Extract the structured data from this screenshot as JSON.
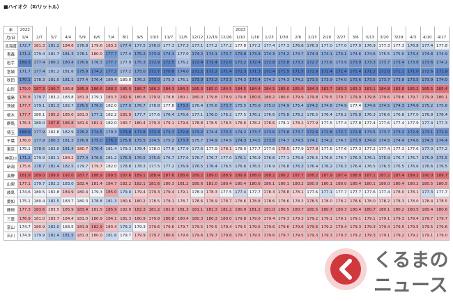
{
  "title": "■ハイオク（¥/リットル）",
  "table": {
    "year_label": "年",
    "date_label": "月/日",
    "years": [
      {
        "label": "2022",
        "start": 0
      },
      {
        "label": "2023",
        "start": 15
      }
    ],
    "columns": [
      "1/4",
      "2/7",
      "3/7",
      "4/4",
      "5/9",
      "6/6",
      "7/4",
      "8/1",
      "9/5",
      "10/3",
      "11/7",
      "12/5",
      "12/12",
      "12/19",
      "12/26",
      "1/10",
      "1/16",
      "1/23",
      "1/30",
      "2/6",
      "2/13",
      "2/20",
      "2/27",
      "3/6",
      "3/13",
      "3/20",
      "3/29",
      "4/3",
      "4/10",
      "4/17"
    ],
    "rows": [
      {
        "name": "北海道",
        "values": [
          "172.7",
          "181.3",
          "181.2",
          "184.6",
          "178.8",
          "179.6",
          "183.3",
          "177.4",
          "177.5",
          "176.0",
          "177.3",
          "177.3",
          "177.1",
          "177.2",
          "177.2",
          "177.8",
          "177.2",
          "177.4",
          "177.3",
          "176.6",
          "176.3",
          "177.0",
          "177.0",
          "177.0",
          "176.9",
          "177.3",
          "177.3",
          "176.8",
          "177.4",
          "177.8"
        ]
      },
      {
        "name": "青森",
        "values": [
          "171.2",
          "179.4",
          "181.7",
          "181.3",
          "178.1",
          "180.0",
          "177.7",
          "177.4",
          "175.2",
          "173.9",
          "174.3",
          "177.0",
          "174.2",
          "174.1",
          "173.7",
          "173.8",
          "173.9",
          "174.3",
          "174.2",
          "174.7",
          "174.0",
          "174.1",
          "174.1",
          "174.6",
          "174.6",
          "175.5",
          "175.0",
          "174.4",
          "174.8",
          "174.9"
        ]
      },
      {
        "name": "岩手",
        "values": [
          "169.3",
          "177.4",
          "180.1",
          "180.4",
          "176.6",
          "176.3",
          "177.7",
          "177.9",
          "175.3",
          "172.9",
          "172.5",
          "176.2",
          "172.4",
          "172.4",
          "172.0",
          "173.2",
          "172.4",
          "172.8",
          "172.8",
          "173.3",
          "172.7",
          "173.6",
          "173.9",
          "173.0",
          "173.3",
          "173.7",
          "173.4",
          "173.8",
          "173.6",
          "174.2"
        ]
      },
      {
        "name": "宮城",
        "values": [
          "171.7",
          "177.4",
          "181.2",
          "181.6",
          "175.9",
          "174.2",
          "177.2",
          "177.2",
          "175.0",
          "171.7",
          "170.8",
          "174.0",
          "171.2",
          "171.2",
          "171.4",
          "171.3",
          "171.3",
          "171.4",
          "171.5",
          "171.5",
          "171.6",
          "171.4",
          "171.4",
          "171.4",
          "171.2",
          "171.0",
          "171.1",
          "171.0",
          "172.6",
          "171.9"
        ]
      },
      {
        "name": "秋田",
        "values": [
          "170.1",
          "178.3",
          "181.0",
          "181.1",
          "177.4",
          "176.4",
          "180.4",
          "180.0",
          "176.2",
          "173.0",
          "175.3",
          "176.1",
          "173.0",
          "173.2",
          "173.3",
          "174.3",
          "173.4",
          "174.2",
          "174.3",
          "174.2",
          "173.5",
          "173.9",
          "174.0",
          "173.6",
          "173.5",
          "173.7",
          "173.8",
          "173.5",
          "173.9",
          "174.0"
        ]
      },
      {
        "name": "山形",
        "values": [
          "179.0",
          "187.3",
          "190.7",
          "186.8",
          "185.9",
          "186.6",
          "188.3",
          "185.0",
          "186.7",
          "186.2",
          "184.3",
          "184.3",
          "185.0",
          "185.0",
          "184.5",
          "184.5",
          "184.4",
          "184.5",
          "185.0",
          "185.0",
          "184.0",
          "183.7",
          "183.3",
          "183.3",
          "183.1",
          "184.8",
          "183.8",
          "185.2",
          "185.5",
          "185.4"
        ]
      },
      {
        "name": "福島",
        "values": [
          "176.8",
          "179.7",
          "183.2",
          "183.8",
          "181.0",
          "179.1",
          "183.3",
          "182.6",
          "180.8",
          "179.9",
          "178.8",
          "180.1",
          "180.0",
          "179.8",
          "179.9",
          "179.8",
          "180.6",
          "180.2",
          "180.0",
          "179.9",
          "179.8",
          "179.5",
          "179.7",
          "179.9",
          "179.8",
          "179.6",
          "179.6",
          "179.7",
          "179.9",
          "180.1"
        ]
      },
      {
        "name": "茨城",
        "values": [
          "177.7",
          "179.1",
          "181.3",
          "182.7",
          "176.5",
          "176.0",
          "182.0",
          "177.0",
          "176.7",
          "176.8",
          "177.8",
          "173.5",
          "176.4",
          "175.6",
          "173.7",
          "175.5",
          "175.0",
          "175.0",
          "174.9",
          "175.4",
          "174.2",
          "174.8",
          "174.9",
          "177.4",
          "174.6",
          "174.5",
          "174.3",
          "174.6",
          "175.2",
          "175.6"
        ]
      },
      {
        "name": "栃木",
        "values": [
          "177.7",
          "180.1",
          "185.2",
          "185.0",
          "181.0",
          "177.1",
          "182.2",
          "181.9",
          "177.7",
          "177.6",
          "176.4",
          "176.6",
          "177.1",
          "176.0",
          "176.2",
          "177.5",
          "176.1",
          "176.6",
          "175.8",
          "176.2",
          "176.5",
          "176.4",
          "176.2",
          "175.8",
          "176.3",
          "176.6",
          "176.8",
          "177.0",
          "176.8",
          "176.4"
        ]
      },
      {
        "name": "群馬",
        "values": [
          "176.3",
          "180.0",
          "187.8",
          "186.8",
          "181.6",
          "181.1",
          "182.0",
          "180.7",
          "180.4",
          "179.3",
          "179.1",
          "179.6",
          "178.8",
          "178.5",
          "178.5",
          "178.6",
          "178.2",
          "178.6",
          "178.1",
          "178.2",
          "177.9",
          "177.5",
          "177.4",
          "177.8",
          "177.4",
          "177.6",
          "177.4",
          "177.9",
          "177.4",
          "177.3"
        ]
      },
      {
        "name": "埼玉",
        "values": [
          "168.6",
          "177.9",
          "182.8",
          "182.9",
          "176.2",
          "174.5",
          "179.3",
          "173.8",
          "173.8",
          "172.3",
          "173.3",
          "172.8",
          "173.2",
          "174.4",
          "173.3",
          "174.2",
          "173.7",
          "173.6",
          "173.8",
          "173.7",
          "172.6",
          "172.8",
          "172.7",
          "172.8",
          "173.5",
          "173.7",
          "173.2",
          "172.9",
          "173.1",
          "172.9"
        ]
      },
      {
        "name": "千葉",
        "values": [
          "176.0",
          "177.9",
          "180.3",
          "181.3",
          "176.9",
          "175.0",
          "176.3",
          "175.8",
          "175.5",
          "174.5",
          "175.2",
          "173.9",
          "175.7",
          "174.9",
          "174.9",
          "174.3",
          "174.5",
          "173.8",
          "174.7",
          "174.5",
          "174.1",
          "174.2",
          "174.7",
          "173.9",
          "174.0",
          "174.5",
          "174.4",
          "174.6",
          "174.3",
          "174.4"
        ]
      },
      {
        "name": "東京",
        "values": [
          "175.1",
          "178.6",
          "182.0",
          "181.4",
          "180.7",
          "176.4",
          "181.4",
          "179.3",
          "178.4",
          "178.0",
          "177.6",
          "177.9",
          "177.6",
          "177.9",
          "178.1",
          "178.0",
          "177.7",
          "177.6",
          "178.5",
          "177.9",
          "177.8",
          "177.6",
          "177.6",
          "177.3",
          "177.2",
          "177.4",
          "177.3",
          "177.6",
          "177.0",
          "177.2"
        ]
      },
      {
        "name": "神奈川",
        "values": [
          "171.2",
          "179.9",
          "182.1",
          "184.2",
          "177.4",
          "176.6",
          "181.2",
          "176.9",
          "176.5",
          "175.6",
          "176.7",
          "177.0",
          "176.7",
          "176.7",
          "177.0",
          "176.1",
          "176.9",
          "176.6",
          "177.1",
          "176.8",
          "176.5",
          "176.6",
          "176.7",
          "176.3",
          "176.1",
          "175.9",
          "176.7",
          "176.7",
          "175.9",
          "175.5"
        ]
      },
      {
        "name": "新潟",
        "values": [
          "175.6",
          "178.7",
          "181.4",
          "182.5",
          "179.7",
          "179.7",
          "182.0",
          "178.8",
          "178.3",
          "177.5",
          "177.2",
          "176.9",
          "176.5",
          "176.4",
          "176.5",
          "176.6",
          "176.5",
          "176.9",
          "176.8",
          "176.3",
          "176.4",
          "176.2",
          "176.3",
          "176.4",
          "176.5",
          "176.3",
          "176.5",
          "176.6",
          "176.6",
          "176.5"
        ]
      },
      {
        "name": "長野",
        "values": [
          "181.8",
          "189.0",
          "189.9",
          "192.0",
          "187.7",
          "188.9",
          "189.5",
          "187.6",
          "189.1",
          "188.4",
          "187.6",
          "188.6",
          "189.2",
          "189.0",
          "188.9",
          "189.0",
          "188.0",
          "188.2",
          "188.2",
          "187.7",
          "188.2",
          "187.9",
          "187.4",
          "188.0",
          "187.1",
          "187.2",
          "187.4",
          "189.2",
          "190.0",
          "189.7"
        ]
      },
      {
        "name": "山梨",
        "values": [
          "177.1",
          "179.7",
          "182.1",
          "183.0",
          "182.4",
          "181.4",
          "184.7",
          "182.2",
          "182.1",
          "181.6",
          "180.3",
          "181.2",
          "180.6",
          "181.0",
          "180.4",
          "180.4",
          "180.6",
          "180.1",
          "180.1",
          "180.2",
          "180.0",
          "180.1",
          "180.0",
          "180.4",
          "180.1",
          "180.0",
          "180.4",
          "180.2",
          "180.5",
          "180.5"
        ]
      },
      {
        "name": "岐阜",
        "values": [
          "174.6",
          "180.5",
          "182.8",
          "184.9",
          "180.4",
          "179.3",
          "185.0",
          "179.0",
          "179.4",
          "179.3",
          "179.4",
          "179.1",
          "178.0",
          "178.3",
          "177.5",
          "177.4",
          "177.7",
          "178.3",
          "178.8",
          "178.1",
          "177.6",
          "177.1",
          "177.7",
          "177.7",
          "177.6",
          "177.4",
          "178.0",
          "178.1",
          "177.3",
          "177.7"
        ]
      },
      {
        "name": "愛知",
        "values": [
          "175.1",
          "180.4",
          "182.5",
          "183.7",
          "180.3",
          "178.8",
          "181.3",
          "180.6",
          "180.2",
          "178.5",
          "179.1",
          "178.7",
          "178.6",
          "178.9",
          "178.7",
          "178.6",
          "178.8",
          "178.6",
          "178.6",
          "178.3",
          "178.5",
          "178.0",
          "178.2",
          "178.6",
          "178.0",
          "178.2",
          "178.3",
          "178.0",
          "178.4",
          "178.5"
        ]
      },
      {
        "name": "静岡",
        "values": [
          "177.3",
          "183.6",
          "183.5",
          "185.9",
          "183.4",
          "181.5",
          "185.9",
          "182.0",
          "182.3",
          "181.2",
          "181.0",
          "181.3",
          "181.1",
          "181.3",
          "181.2",
          "180.9",
          "181.2",
          "181.0",
          "180.5",
          "180.7",
          "180.5",
          "180.7",
          "180.3",
          "180.4",
          "180.7",
          "180.1",
          "180.2",
          "180.5",
          "180.4",
          "180.6"
        ]
      },
      {
        "name": "三重",
        "values": [
          "176.9",
          "181.0",
          "183.7",
          "184.4",
          "181.0",
          "180.9",
          "184.1",
          "181.3",
          "180.9",
          "179.8",
          "180.8",
          "180.4",
          "180.3",
          "180.3",
          "180.0",
          "179.8",
          "179.6",
          "179.4",
          "179.3",
          "179.3",
          "179.2",
          "179.1",
          "179.1",
          "179.1",
          "179.1",
          "179.1",
          "179.3",
          "179.4",
          "179.7",
          "179.7"
        ]
      },
      {
        "name": "富山",
        "values": [
          "174.7",
          "180.9",
          "182.0",
          "183.5",
          "181.9",
          "182.9",
          "183.4",
          "179.2",
          "179.3",
          "179.6",
          "179.6",
          "179.7",
          "179.5",
          "179.5",
          "179.4",
          "179.5",
          "179.5",
          "179.6",
          "179.6",
          "179.6",
          "179.6",
          "179.2",
          "179.4",
          "179.3",
          "179.3",
          "179.4",
          "179.5",
          "179.5",
          "179.5",
          "179.6"
        ]
      },
      {
        "name": "石川",
        "values": [
          "174.9",
          "179.9",
          "181.4",
          "181.5",
          "181.0",
          "180.0",
          "181.6",
          "179.7",
          "179.9",
          "179.7",
          "180.0",
          "179.6",
          "179.6",
          "179.7",
          "179.8",
          "179.7",
          "179.5",
          "179.6",
          "179.7",
          "179.5",
          "179.3",
          "179.3",
          "179.3",
          "179.2",
          "179.3",
          "179.1",
          "179.2",
          "179.2",
          "179.1",
          "179.0"
        ]
      }
    ]
  },
  "logo": {
    "line1": "くるまの",
    "line2": "ニュース"
  }
}
